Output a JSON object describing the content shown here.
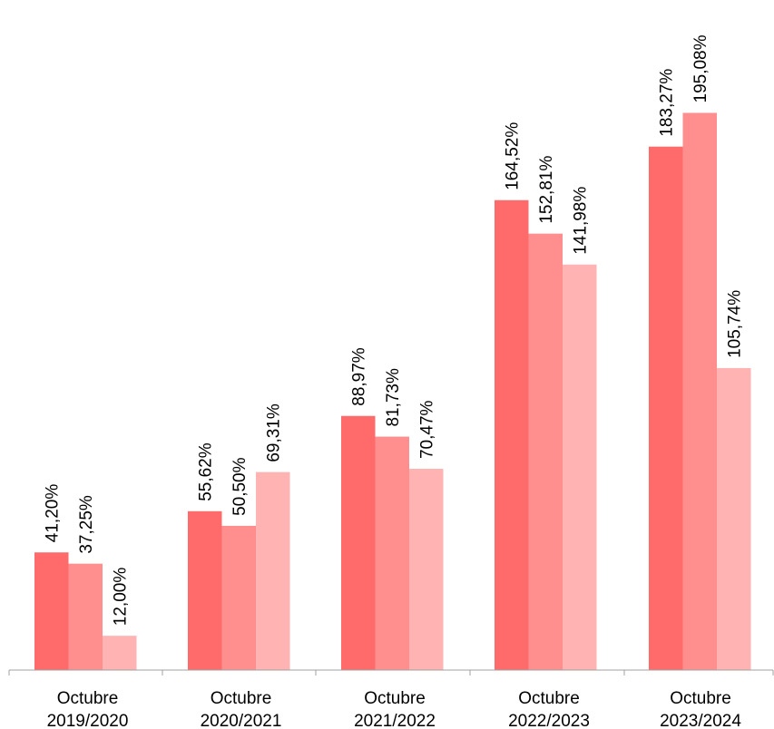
{
  "chart_data": {
    "type": "bar",
    "title": "",
    "xlabel": "",
    "ylabel": "",
    "categories": [
      [
        "Octubre",
        "2019/2020"
      ],
      [
        "Octubre",
        "2020/2021"
      ],
      [
        "Octubre",
        "2021/2022"
      ],
      [
        "Octubre",
        "2022/2023"
      ],
      [
        "Octubre",
        "2023/2024"
      ]
    ],
    "series": [
      {
        "color": "#ff6b6b",
        "values": [
          41.2,
          55.62,
          88.97,
          164.52,
          183.27
        ],
        "labels": [
          "41,20%",
          "55,62%",
          "88,97%",
          "164,52%",
          "183,27%"
        ]
      },
      {
        "color": "#ff8f8f",
        "values": [
          37.25,
          50.5,
          81.73,
          152.81,
          195.08
        ],
        "labels": [
          "37,25%",
          "50,50%",
          "81,73%",
          "152,81%",
          "195,08%"
        ]
      },
      {
        "color": "#ffb3b3",
        "values": [
          12.0,
          69.31,
          70.47,
          141.98,
          105.74
        ],
        "labels": [
          "12,00%",
          "69,31%",
          "70,47%",
          "141,98%",
          "105,74%"
        ]
      }
    ],
    "ylim": [
      0,
      200
    ],
    "grid": false,
    "legend": "none",
    "data_labels": "rotated-vertical-above-bars"
  }
}
